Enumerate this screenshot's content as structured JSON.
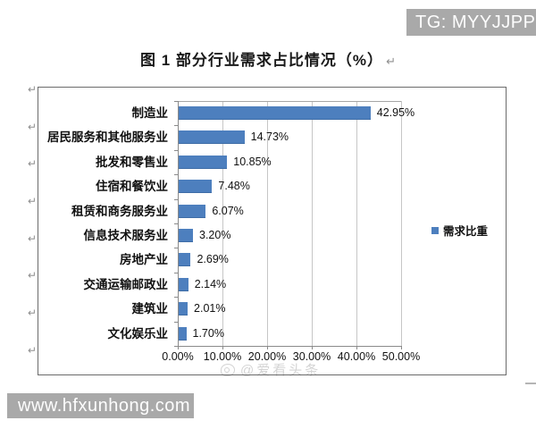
{
  "watermarks": {
    "top_right": "TG: MYYJJPP",
    "bottom_left": "www.hfxunhong.com",
    "weibo_faint": "@爱看头条"
  },
  "caption": {
    "text": "图 1  部分行业需求占比情况（%）",
    "return_mark": "↵"
  },
  "chart_data": {
    "type": "bar",
    "orientation": "horizontal",
    "title": "图 1 部分行业需求占比情况（%）",
    "categories": [
      "制造业",
      "居民服务和其他服务业",
      "批发和零售业",
      "住宿和餐饮业",
      "租赁和商务服务业",
      "信息技术服务业",
      "房地产业",
      "交通运输邮政业",
      "建筑业",
      "文化娱乐业"
    ],
    "values": [
      42.95,
      14.73,
      10.85,
      7.48,
      6.07,
      3.2,
      2.69,
      2.14,
      2.01,
      1.7
    ],
    "value_labels": [
      "42.95%",
      "14.73%",
      "10.85%",
      "7.48%",
      "6.07%",
      "3.20%",
      "2.69%",
      "2.14%",
      "2.01%",
      "1.70%"
    ],
    "x_ticks": [
      "0.00%",
      "10.00%",
      "20.00%",
      "30.00%",
      "40.00%",
      "50.00%"
    ],
    "xlim": [
      0,
      50
    ],
    "xlabel": "",
    "ylabel": "",
    "grid": true,
    "legend_label": "需求比重",
    "legend_position": "right",
    "bar_color": "#4d7fbe"
  },
  "decorations": {
    "paragraph_return_mark": "↵"
  }
}
